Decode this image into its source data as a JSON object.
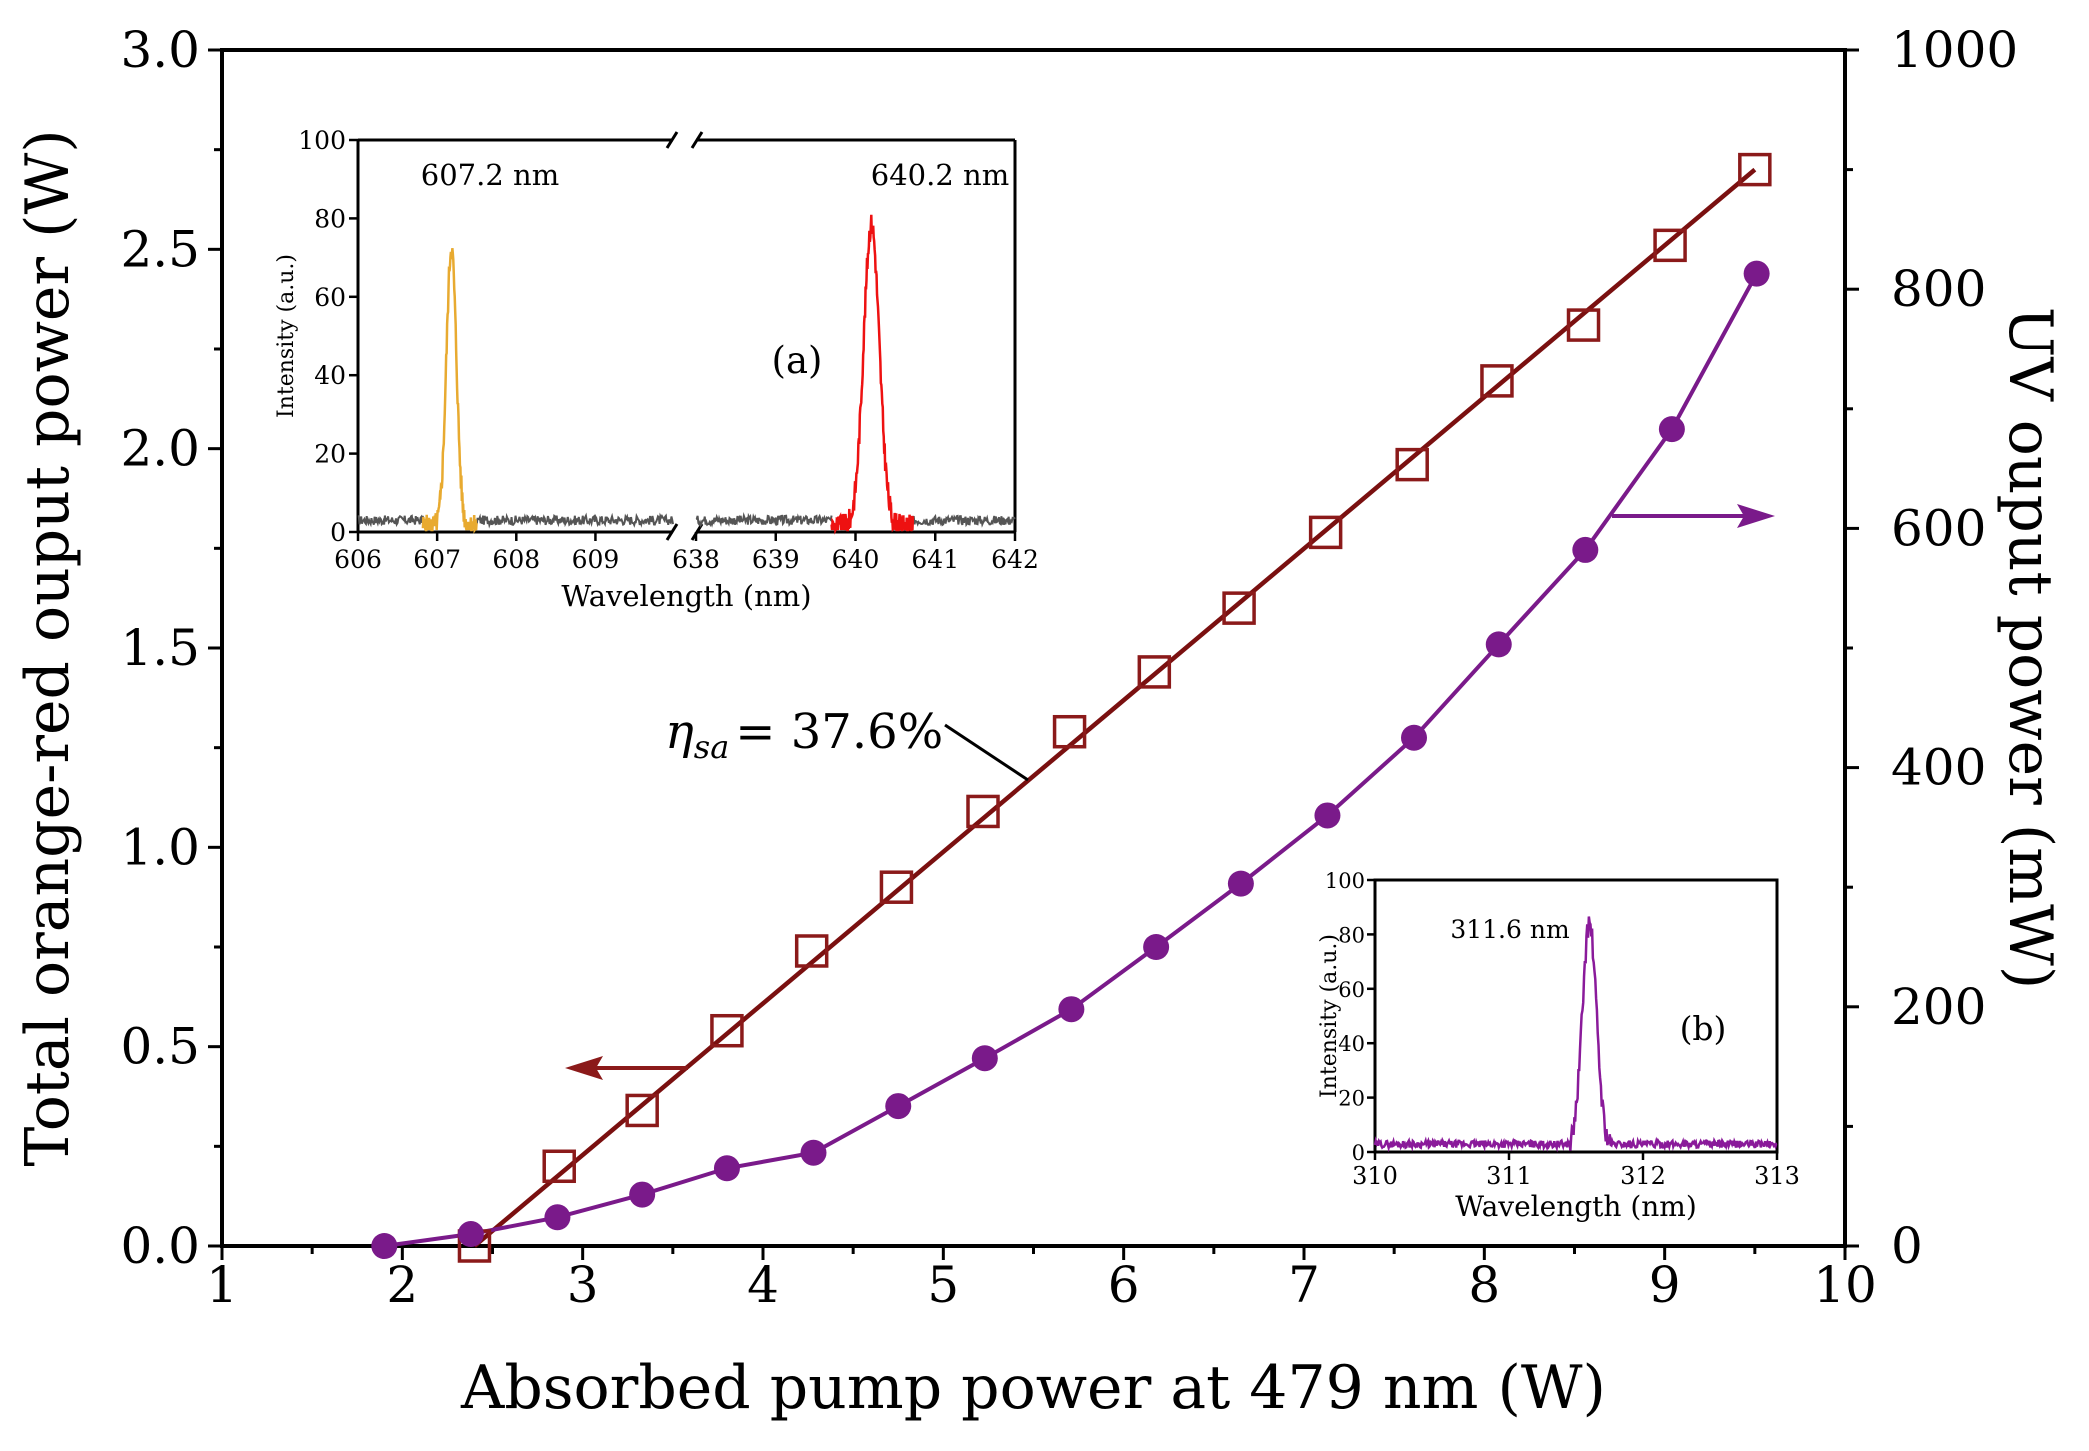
{
  "chart_data": [
    {
      "id": "main",
      "type": "line",
      "xlabel": "Absorbed pump power at 479 nm (W)",
      "ylabel_left": "Total orange-red ouput power (W)",
      "ylabel_right": "UV ouput power (mW)",
      "xlim": [
        1,
        10
      ],
      "ylim_left": [
        0,
        3.0
      ],
      "ylim_right": [
        0,
        1000
      ],
      "x_ticks": [
        "1",
        "2",
        "3",
        "4",
        "5",
        "6",
        "7",
        "8",
        "9",
        "10"
      ],
      "y_left_ticks": [
        "0.0",
        "0.5",
        "1.0",
        "1.5",
        "2.0",
        "2.5",
        "3.0"
      ],
      "y_right_ticks": [
        "0",
        "200",
        "400",
        "600",
        "800",
        "1000"
      ],
      "series": [
        {
          "name": "Total orange-red output power",
          "axis": "left",
          "marker": "open-square",
          "color": "#8b1a1a",
          "x": [
            2.4,
            2.87,
            3.33,
            3.8,
            4.27,
            4.74,
            5.22,
            5.7,
            6.17,
            6.64,
            7.12,
            7.6,
            8.07,
            8.55,
            9.03,
            9.5
          ],
          "y": [
            0.0,
            0.2,
            0.34,
            0.54,
            0.74,
            0.9,
            1.09,
            1.29,
            1.44,
            1.6,
            1.79,
            1.96,
            2.17,
            2.31,
            2.51,
            2.7
          ]
        },
        {
          "name": "Linear fit",
          "axis": "left",
          "style": "line",
          "color": "#7a1010",
          "x": [
            2.4,
            9.5
          ],
          "y": [
            0.0,
            2.7
          ]
        },
        {
          "name": "UV output power",
          "axis": "right",
          "marker": "filled-circle",
          "color": "#7a1a8a",
          "x": [
            1.9,
            2.38,
            2.86,
            3.33,
            3.8,
            4.28,
            4.75,
            5.23,
            5.71,
            6.18,
            6.65,
            7.13,
            7.61,
            8.08,
            8.56,
            9.04,
            9.51
          ],
          "y": [
            0,
            10,
            24,
            43,
            65,
            78,
            117,
            157,
            198,
            250,
            303,
            360,
            425,
            503,
            582,
            683,
            813
          ]
        }
      ],
      "annotations": {
        "eta_symbol": "η",
        "eta_subscript": "sa",
        "eta_value": "= 37.6%"
      }
    },
    {
      "id": "inset-a",
      "type": "line",
      "panel_label": "(a)",
      "xlabel": "Wavelength (nm)",
      "ylabel": "Intensity (a.u.)",
      "x_ticks": [
        "606",
        "607",
        "608",
        "609",
        "638",
        "639",
        "640",
        "641",
        "642"
      ],
      "y_ticks": [
        "0",
        "20",
        "40",
        "60",
        "80",
        "100"
      ],
      "ylim": [
        0,
        100
      ],
      "broken_axis": true,
      "series": [
        {
          "name": "orange line",
          "color": "#e8aa30",
          "peak_label": "607.2 nm",
          "peak_x": 607.2,
          "peak_y": 83
        },
        {
          "name": "red line",
          "color": "#ee1111",
          "peak_label": "640.2 nm",
          "peak_x": 640.2,
          "peak_y": 83
        }
      ]
    },
    {
      "id": "inset-b",
      "type": "line",
      "panel_label": "(b)",
      "xlabel": "Wavelength (nm)",
      "ylabel": "Intensity (a.u.)",
      "x_ticks": [
        "310",
        "311",
        "312",
        "313"
      ],
      "y_ticks": [
        "0",
        "20",
        "40",
        "60",
        "80",
        "100"
      ],
      "xlim": [
        310,
        313
      ],
      "ylim": [
        0,
        100
      ],
      "series": [
        {
          "name": "UV line",
          "color": "#8a1a9a",
          "peak_label": "311.6 nm",
          "peak_x": 311.6,
          "peak_y": 87
        }
      ]
    }
  ]
}
